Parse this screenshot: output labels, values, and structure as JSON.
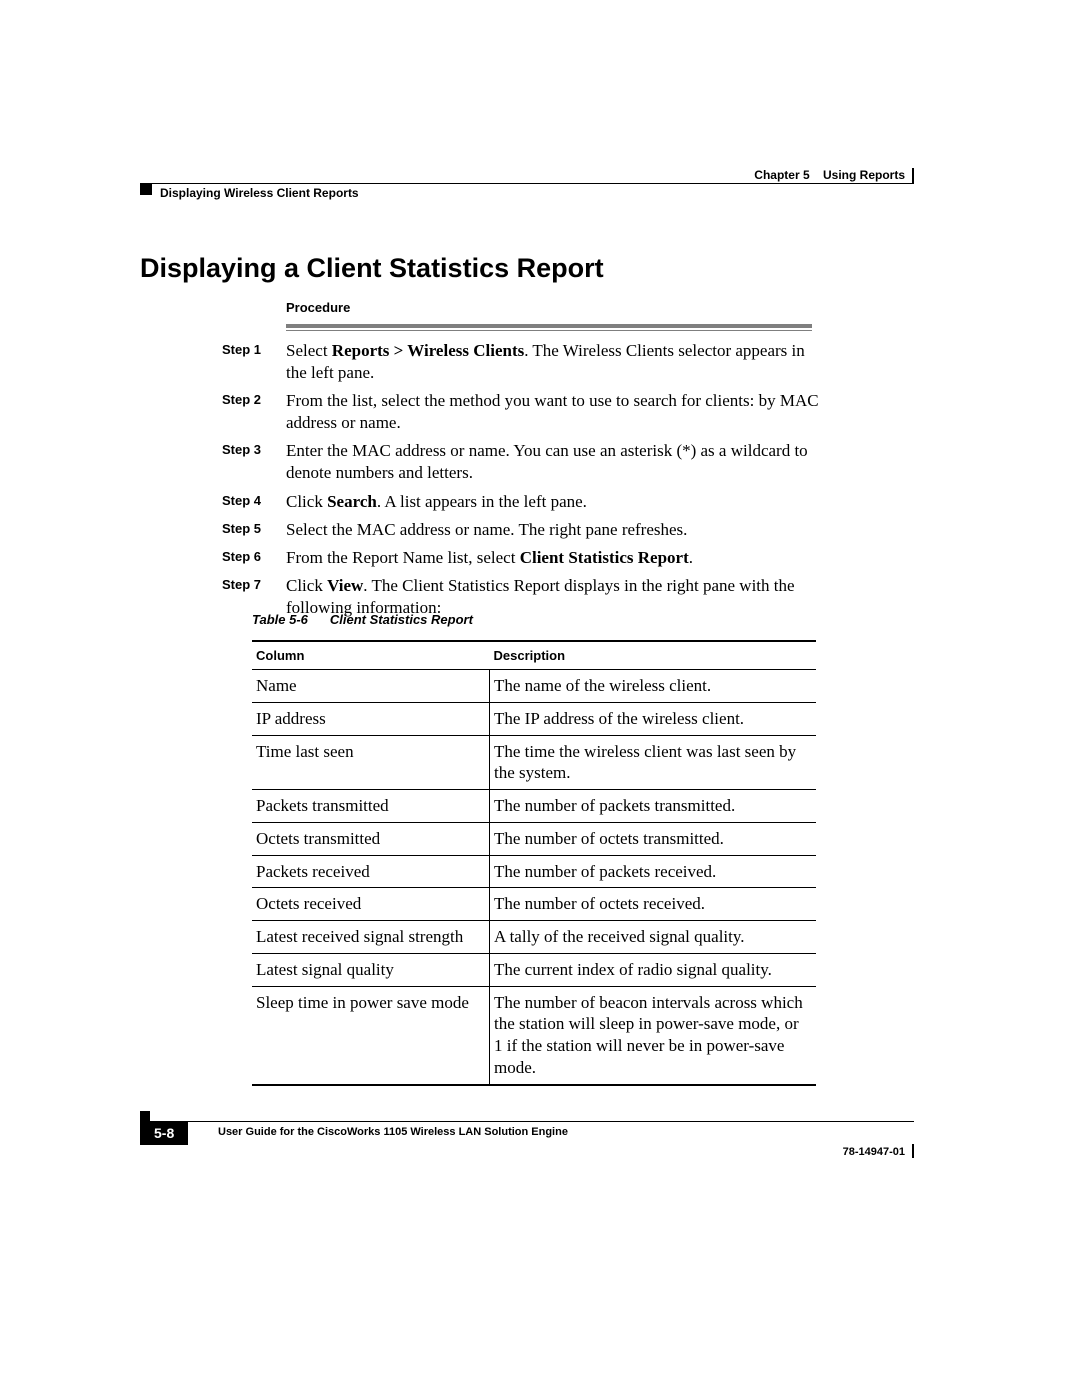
{
  "header": {
    "chapter": "Chapter 5",
    "chapter_title": "Using Reports",
    "section": "Displaying Wireless Client Reports"
  },
  "title": "Displaying a Client Statistics Report",
  "procedure_label": "Procedure",
  "steps": [
    {
      "num": "Step 1",
      "prefix": "Select ",
      "bold": "Reports > Wireless Clients",
      "suffix": ". The Wireless Clients selector appears in the left pane."
    },
    {
      "num": "Step 2",
      "prefix": "From the list, select the method you want to use to search for clients: by MAC address or name.",
      "bold": "",
      "suffix": ""
    },
    {
      "num": "Step 3",
      "prefix": "Enter the MAC address or name. You can use an asterisk (*) as a wildcard to denote numbers and letters.",
      "bold": "",
      "suffix": ""
    },
    {
      "num": "Step 4",
      "prefix": "Click ",
      "bold": "Search",
      "suffix": ". A list appears in the left pane."
    },
    {
      "num": "Step 5",
      "prefix": "Select the MAC address or name. The right pane refreshes.",
      "bold": "",
      "suffix": ""
    },
    {
      "num": "Step 6",
      "prefix": "From the Report Name list, select ",
      "bold": "Client Statistics Report",
      "suffix": "."
    },
    {
      "num": "Step 7",
      "prefix": "Click ",
      "bold": "View",
      "suffix": ". The Client Statistics Report displays in the right pane with the following information:"
    }
  ],
  "table_caption_num": "Table 5-6",
  "table_caption_title": "Client Statistics Report",
  "table": {
    "headers": [
      "Column",
      "Description"
    ],
    "rows": [
      [
        "Name",
        "The name of the wireless client."
      ],
      [
        "IP address",
        "The IP address of the wireless client."
      ],
      [
        "Time last seen",
        "The time the wireless client was last seen by the system."
      ],
      [
        "Packets transmitted",
        "The number of packets transmitted."
      ],
      [
        "Octets transmitted",
        "The number of octets transmitted."
      ],
      [
        "Packets received",
        "The number of packets received."
      ],
      [
        "Octets received",
        "The number of octets received."
      ],
      [
        "Latest received signal strength",
        "A tally of the received signal quality."
      ],
      [
        "Latest signal quality",
        "The current index of radio signal quality."
      ],
      [
        "Sleep time in power save mode",
        "The number of beacon intervals across which the station will sleep in power-save mode, or 1 if the station will never be in power-save mode."
      ]
    ]
  },
  "footer": {
    "guide": "User Guide for the CiscoWorks 1105 Wireless LAN Solution Engine",
    "page": "5-8",
    "docnum": "78-14947-01"
  }
}
